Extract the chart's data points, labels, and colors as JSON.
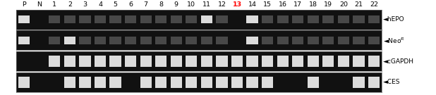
{
  "lane_labels": [
    "P",
    "N",
    "1",
    "2",
    "3",
    "4",
    "5",
    "6",
    "7",
    "8",
    "9",
    "10",
    "11",
    "12",
    "13",
    "14",
    "15",
    "16",
    "17",
    "18",
    "19",
    "20",
    "21",
    "22"
  ],
  "red_lane": "13",
  "bg_color": "#111111",
  "band_color_bright": "#dcdcdc",
  "band_color_medium": "#909090",
  "band_color_faint": "#484848",
  "fig_bg": "#ffffff",
  "border_color": "#666666",
  "rows": {
    "hEPO": [
      2,
      0,
      1,
      1,
      1,
      1,
      1,
      1,
      1,
      1,
      1,
      1,
      2,
      1,
      0,
      2,
      1,
      1,
      1,
      1,
      1,
      1,
      1,
      1
    ],
    "NeoR": [
      2,
      0,
      1,
      2,
      1,
      1,
      1,
      1,
      1,
      1,
      1,
      1,
      1,
      1,
      0,
      2,
      1,
      1,
      1,
      1,
      1,
      1,
      1,
      1
    ],
    "cGAPDH": [
      0,
      0,
      2,
      2,
      2,
      2,
      2,
      2,
      2,
      2,
      2,
      2,
      2,
      2,
      2,
      2,
      2,
      2,
      2,
      2,
      2,
      2,
      2,
      2
    ],
    "CES": [
      2,
      0,
      0,
      2,
      2,
      2,
      2,
      0,
      2,
      2,
      2,
      2,
      2,
      2,
      2,
      2,
      2,
      0,
      0,
      2,
      0,
      0,
      2,
      2
    ]
  },
  "label_fontsize": 6.5,
  "lane_label_fontsize": 6.8
}
